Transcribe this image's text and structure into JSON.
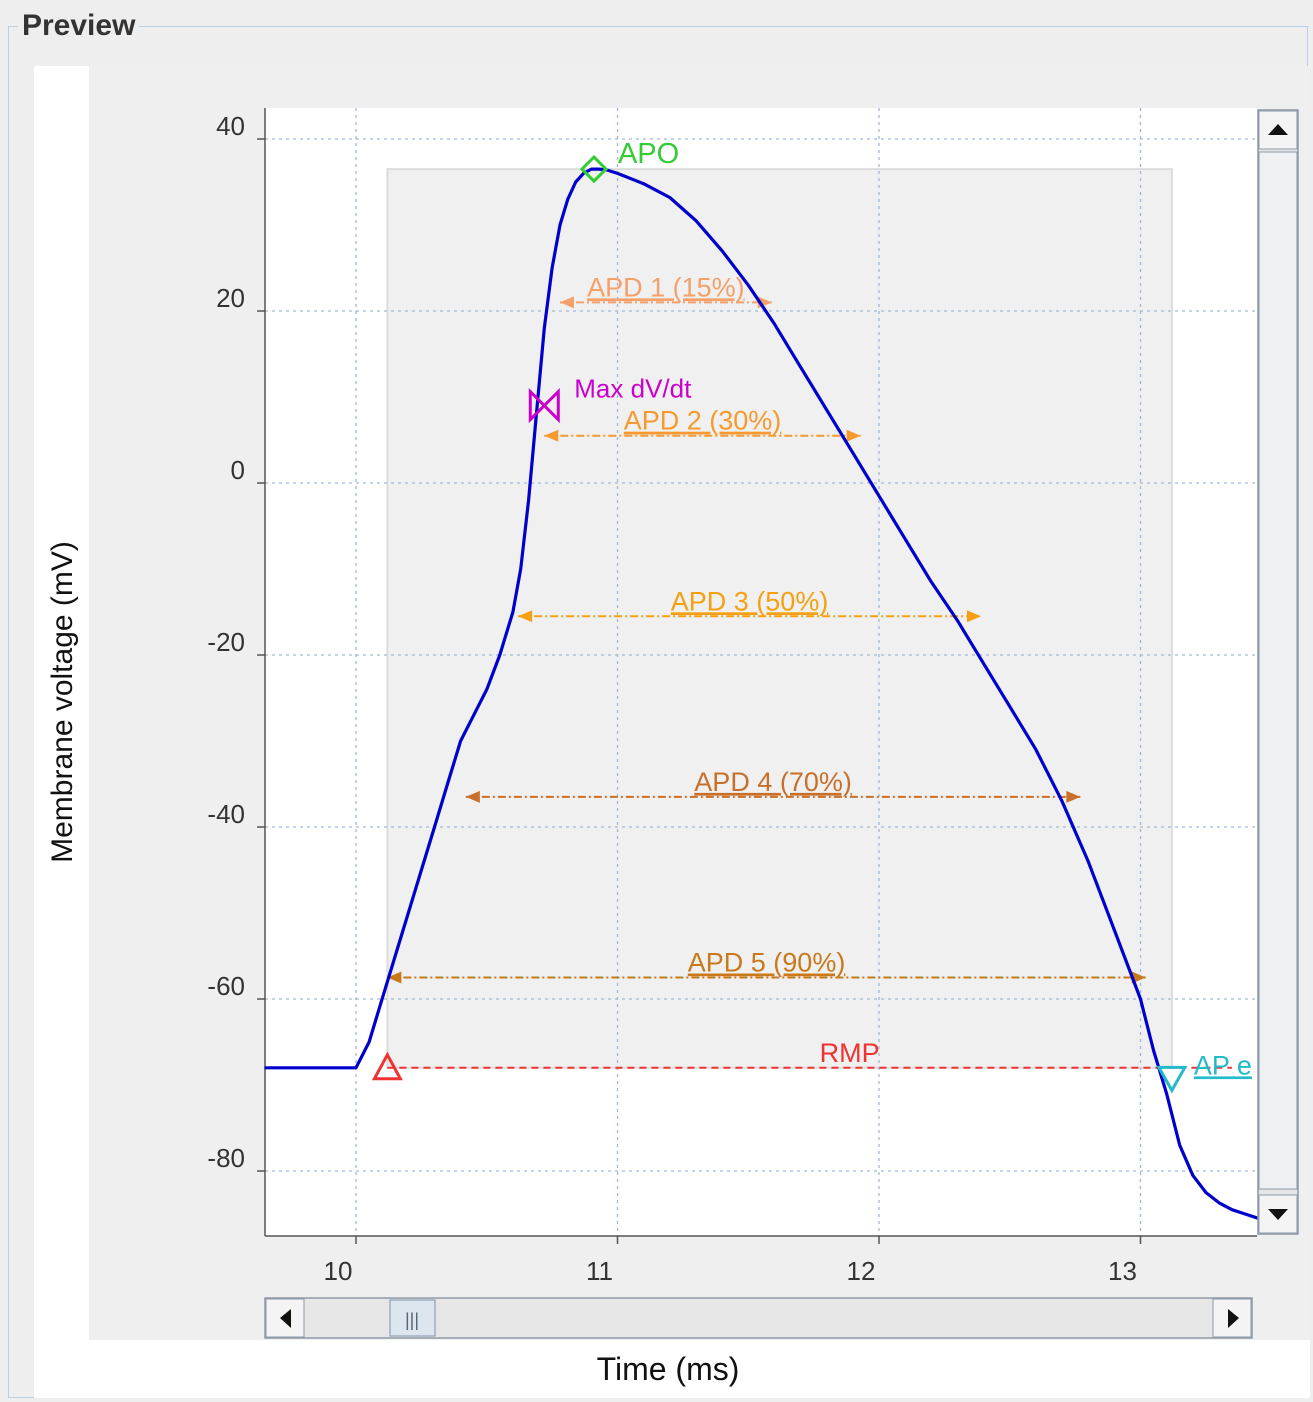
{
  "panel": {
    "title": "Preview"
  },
  "chart_data": {
    "type": "line",
    "xlabel": "Time (ms)",
    "ylabel": "Membrane voltage (mV)",
    "xlim": [
      9.65,
      13.45
    ],
    "ylim": [
      -88,
      43
    ],
    "x_ticks": [
      10,
      11,
      12,
      13
    ],
    "y_ticks": [
      40,
      20,
      0,
      -20,
      -40,
      -60,
      -80
    ],
    "x_tick_labels": [
      "10",
      "11",
      "12",
      "13"
    ],
    "y_tick_labels": [
      "40",
      "20",
      "0",
      "-20",
      "-40",
      "-60",
      "-80"
    ],
    "grid": true,
    "shaded_region": {
      "x": [
        10.12,
        13.12
      ],
      "y": [
        -68,
        36.5
      ]
    },
    "series": [
      {
        "color": "#0000cc",
        "x": [
          9.65,
          10.0,
          10.05,
          10.1,
          10.15,
          10.2,
          10.25,
          10.3,
          10.35,
          10.4,
          10.45,
          10.5,
          10.55,
          10.6,
          10.63,
          10.66,
          10.69,
          10.72,
          10.75,
          10.78,
          10.81,
          10.84,
          10.87,
          10.9,
          10.93,
          10.96,
          11.0,
          11.1,
          11.2,
          11.3,
          11.4,
          11.5,
          11.6,
          11.7,
          11.8,
          11.9,
          12.0,
          12.1,
          12.2,
          12.3,
          12.4,
          12.5,
          12.6,
          12.7,
          12.8,
          12.9,
          13.0,
          13.05,
          13.1,
          13.15,
          13.2,
          13.25,
          13.3,
          13.35,
          13.4,
          13.45
        ],
        "y": [
          -68,
          -68,
          -65,
          -60,
          -55,
          -50,
          -45,
          -40,
          -35,
          -30,
          -27,
          -24,
          -20,
          -15,
          -10,
          -2,
          8,
          18,
          25,
          30,
          33,
          35,
          36,
          36.5,
          36.5,
          36.4,
          36,
          34.8,
          33.2,
          30.5,
          27,
          23,
          18.5,
          13.5,
          8.5,
          3.5,
          -1.5,
          -6.5,
          -11.5,
          -16,
          -21,
          -26,
          -31,
          -37,
          -44,
          -52,
          -60,
          -66,
          -71,
          -77,
          -80.5,
          -82.5,
          -83.7,
          -84.5,
          -85,
          -85.5
        ]
      }
    ],
    "annotations": {
      "apd": [
        {
          "label": "APD 1 (15%)",
          "y": 21,
          "x_start": 10.78,
          "x_end": 11.59,
          "color": "#f4a06a"
        },
        {
          "label": "APD 2 (30%)",
          "y": 5.5,
          "x_start": 10.72,
          "x_end": 11.93,
          "color": "#f59a2e"
        },
        {
          "label": "APD 3 (50%)",
          "y": -15.5,
          "x_start": 10.62,
          "x_end": 12.39,
          "color": "#f5a012"
        },
        {
          "label": "APD 4 (70%)",
          "y": -36.5,
          "x_start": 10.42,
          "x_end": 12.77,
          "color": "#c8702a"
        },
        {
          "label": "APD 5 (90%)",
          "y": -57.5,
          "x_start": 10.12,
          "x_end": 13.02,
          "color": "#c87a1a"
        }
      ],
      "rmp": {
        "label": "RMP",
        "y": -68,
        "x_start": 10.12,
        "x_end": 13.12,
        "color": "#ee3333"
      },
      "markers": [
        {
          "label": "APO",
          "shape": "diamond",
          "x": 10.91,
          "y": 36.5,
          "color": "#33cc33"
        },
        {
          "label": "Max dV/dt",
          "shape": "bowtie",
          "x": 10.72,
          "y": 9,
          "color": "#cc00cc"
        },
        {
          "label": "",
          "shape": "triangle-up",
          "x": 10.12,
          "y": -68,
          "color": "#ee3333"
        },
        {
          "label": "AP e",
          "shape": "triangle-down",
          "x": 13.12,
          "y": -69,
          "color": "#22bbcc"
        }
      ]
    }
  },
  "scrollbars": {
    "horizontal": {
      "thumb_label": "|||"
    }
  }
}
